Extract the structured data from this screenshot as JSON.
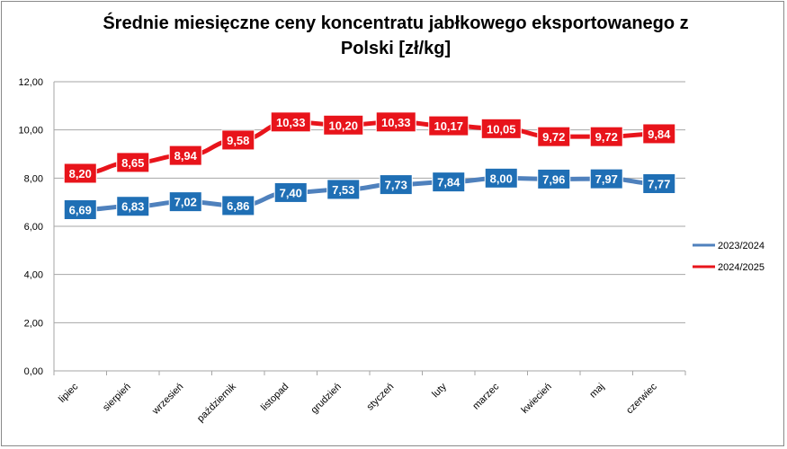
{
  "chart_data": {
    "type": "line",
    "title": "Średnie miesięczne ceny koncentratu jabłkowego eksportowanego z Polski [zł/kg]",
    "title_lines": [
      "Średnie miesięczne ceny koncentratu jabłkowego eksportowanego z",
      "Polski [zł/kg]"
    ],
    "categories": [
      "lipiec",
      "sierpień",
      "wrzesień",
      "październik",
      "listopad",
      "grudzień",
      "styczeń",
      "luty",
      "marzec",
      "kwiecień",
      "maj",
      "czerwiec"
    ],
    "y_ticks": [
      "0,00",
      "2,00",
      "4,00",
      "6,00",
      "8,00",
      "10,00",
      "12,00"
    ],
    "ylim": [
      0,
      12
    ],
    "legend_position": "right",
    "series": [
      {
        "name": "2023/2024",
        "color": "#4f81bd",
        "label_color": "#1f6fb5",
        "values": [
          6.69,
          6.83,
          7.02,
          6.86,
          7.4,
          7.53,
          7.73,
          7.84,
          8.0,
          7.96,
          7.97,
          7.77
        ],
        "labels": [
          "6,69",
          "6,83",
          "7,02",
          "6,86",
          "7,40",
          "7,53",
          "7,73",
          "7,84",
          "8,00",
          "7,96",
          "7,97",
          "7,77"
        ]
      },
      {
        "name": "2024/2025",
        "color": "#e8141b",
        "label_color": "#e8141b",
        "values": [
          8.2,
          8.65,
          8.94,
          9.58,
          10.33,
          10.2,
          10.33,
          10.17,
          10.05,
          9.72,
          9.72,
          9.84
        ],
        "labels": [
          "8,20",
          "8,65",
          "8,94",
          "9,58",
          "10,33",
          "10,20",
          "10,33",
          "10,17",
          "10,05",
          "9,72",
          "9,72",
          "9,84"
        ]
      }
    ]
  }
}
